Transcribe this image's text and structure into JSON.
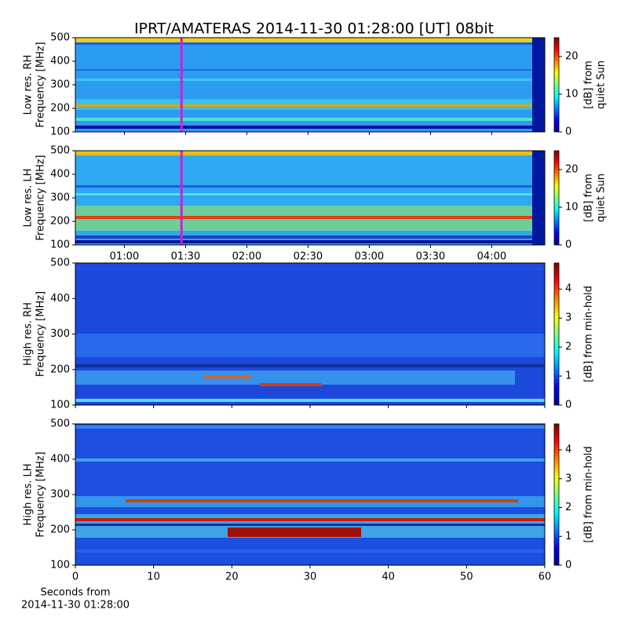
{
  "chart_data": [
    {
      "type": "heatmap",
      "title": "IPRT/AMATERAS 2014-11-30 01:28:00 [UT]   08bit",
      "ylabel": [
        "Low res. RH",
        "Frequency [MHz]"
      ],
      "ylim": [
        100,
        500
      ],
      "yticks": [
        100,
        200,
        300,
        400,
        500
      ],
      "xlim": [
        36,
        266
      ],
      "xticks": [
        60,
        90,
        120,
        150,
        180,
        210,
        240
      ],
      "xtick_labels": false,
      "marker_x": 88,
      "marker_color": "#d21ed2",
      "colorbar_label": [
        "[dB] from",
        "quiet Sun"
      ],
      "clim": [
        0,
        25
      ],
      "cticks": [
        0,
        10,
        20
      ]
    },
    {
      "type": "heatmap",
      "ylabel": [
        "Low res. LH",
        "Frequency [MHz]"
      ],
      "ylim": [
        100,
        500
      ],
      "yticks": [
        100,
        200,
        300,
        400,
        500
      ],
      "xlim": [
        36,
        266
      ],
      "xticks": [
        {
          "value": 60,
          "label": "01:00"
        },
        {
          "value": 90,
          "label": "01:30"
        },
        {
          "value": 120,
          "label": "02:00"
        },
        {
          "value": 150,
          "label": "02:30"
        },
        {
          "value": 180,
          "label": "03:00"
        },
        {
          "value": 210,
          "label": "03:30"
        },
        {
          "value": 240,
          "label": "04:00"
        }
      ],
      "xtick_labels": true,
      "marker_x": 88,
      "marker_color": "#d21ed2",
      "colorbar_label": [
        "[dB] from",
        "quiet Sun"
      ],
      "clim": [
        0,
        25
      ],
      "cticks": [
        0,
        10,
        20
      ]
    },
    {
      "type": "heatmap",
      "ylabel": [
        "High res. RH",
        "Frequency [MHz]"
      ],
      "ylim": [
        100,
        500
      ],
      "yticks": [
        100,
        200,
        300,
        400,
        500
      ],
      "xlim": [
        0,
        60
      ],
      "xticks": [
        0,
        10,
        20,
        30,
        40,
        50,
        60
      ],
      "xtick_labels": false,
      "colorbar_label": [
        "[dB] from min-hold"
      ],
      "clim": [
        0,
        4.9
      ],
      "cticks": [
        0,
        1,
        2,
        3,
        4
      ]
    },
    {
      "type": "heatmap",
      "ylabel": [
        "High res. LH",
        "Frequency [MHz]"
      ],
      "ylim": [
        100,
        500
      ],
      "yticks": [
        100,
        200,
        300,
        400,
        500
      ],
      "xlim": [
        0,
        60
      ],
      "xticks": [
        0,
        10,
        20,
        30,
        40,
        50,
        60
      ],
      "xtick_labels": true,
      "xlabel": [
        "Seconds from",
        "2014-11-30 01:28:00"
      ],
      "colorbar_label": [
        "[dB] from min-hold"
      ],
      "clim": [
        0,
        4.9
      ],
      "cticks": [
        0,
        1,
        2,
        3,
        4
      ]
    }
  ]
}
